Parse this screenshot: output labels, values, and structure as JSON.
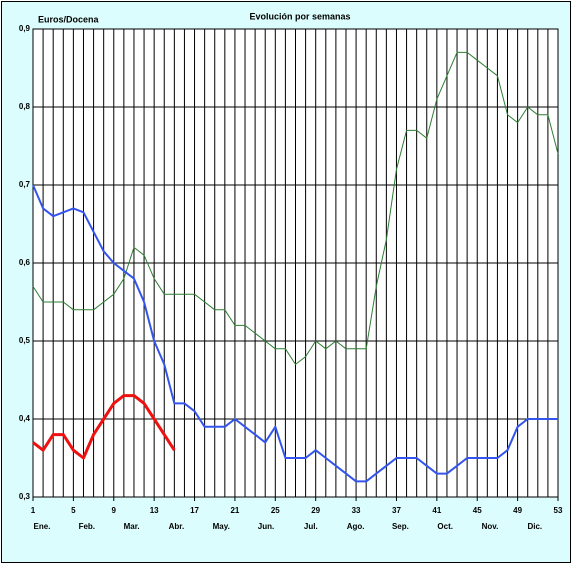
{
  "chart_data": {
    "type": "line",
    "title": "Evolución por semanas",
    "y_label": "Euros/Docena",
    "x": [
      1,
      2,
      3,
      4,
      5,
      6,
      7,
      8,
      9,
      10,
      11,
      12,
      13,
      14,
      15,
      16,
      17,
      18,
      19,
      20,
      21,
      22,
      23,
      24,
      25,
      26,
      27,
      28,
      29,
      30,
      31,
      32,
      33,
      34,
      35,
      36,
      37,
      38,
      39,
      40,
      41,
      42,
      43,
      44,
      45,
      46,
      47,
      48,
      49,
      50,
      51,
      52,
      53
    ],
    "xlim": [
      1,
      53
    ],
    "xticks": [
      1,
      5,
      9,
      13,
      17,
      21,
      25,
      29,
      33,
      37,
      41,
      45,
      49,
      53
    ],
    "months": [
      "Ene.",
      "Feb.",
      "Mar.",
      "Abr.",
      "May.",
      "Jun.",
      "Jul.",
      "Ago.",
      "Sep.",
      "Oct.",
      "Nov.",
      "Dic."
    ],
    "ylim": [
      0.3,
      0.9
    ],
    "yticks": [
      {
        "value": 0.3,
        "label": "0,3"
      },
      {
        "value": 0.4,
        "label": "0,4"
      },
      {
        "value": 0.5,
        "label": "0,5"
      },
      {
        "value": 0.6,
        "label": "0,6"
      },
      {
        "value": 0.7,
        "label": "0,7"
      },
      {
        "value": 0.8,
        "label": "0,8"
      },
      {
        "value": 0.9,
        "label": "0,9"
      }
    ],
    "grid": true,
    "series": [
      {
        "color": "#2e7d32",
        "width": 1,
        "values": [
          0.57,
          0.55,
          0.55,
          0.55,
          0.54,
          0.54,
          0.54,
          0.55,
          0.56,
          0.58,
          0.62,
          0.61,
          0.58,
          0.56,
          0.56,
          0.56,
          0.56,
          0.55,
          0.54,
          0.54,
          0.52,
          0.52,
          0.51,
          0.5,
          0.49,
          0.49,
          0.47,
          0.48,
          0.5,
          0.49,
          0.5,
          0.49,
          0.49,
          0.49,
          0.57,
          0.63,
          0.72,
          0.77,
          0.77,
          0.76,
          0.81,
          0.84,
          0.87,
          0.87,
          0.86,
          0.85,
          0.84,
          0.79,
          0.78,
          0.8,
          0.79,
          0.79,
          0.74
        ]
      },
      {
        "color": "#3355ee",
        "width": 2,
        "values": [
          0.7,
          0.67,
          0.66,
          0.665,
          0.67,
          0.665,
          0.64,
          0.615,
          0.6,
          0.59,
          0.58,
          0.55,
          0.5,
          0.47,
          0.42,
          0.42,
          0.41,
          0.39,
          0.39,
          0.39,
          0.4,
          0.39,
          0.38,
          0.37,
          0.39,
          0.35,
          0.35,
          0.35,
          0.36,
          0.35,
          0.34,
          0.33,
          0.32,
          0.32,
          0.33,
          0.34,
          0.35,
          0.35,
          0.35,
          0.34,
          0.33,
          0.33,
          0.34,
          0.35,
          0.35,
          0.35,
          0.35,
          0.36,
          0.39,
          0.4,
          0.4,
          0.4,
          0.4
        ]
      },
      {
        "color": "#ee1111",
        "width": 3,
        "values": [
          0.37,
          0.36,
          0.38,
          0.38,
          0.36,
          0.35,
          0.38,
          0.4,
          0.42,
          0.43,
          0.43,
          0.42,
          0.4,
          0.38,
          0.36,
          null,
          null,
          null,
          null,
          null,
          null,
          null,
          null,
          null,
          null,
          null,
          null,
          null,
          null,
          null,
          null,
          null,
          null,
          null,
          null,
          null,
          null,
          null,
          null,
          null,
          null,
          null,
          null,
          null,
          null,
          null,
          null,
          null,
          null,
          null,
          null,
          null,
          null
        ]
      }
    ]
  }
}
